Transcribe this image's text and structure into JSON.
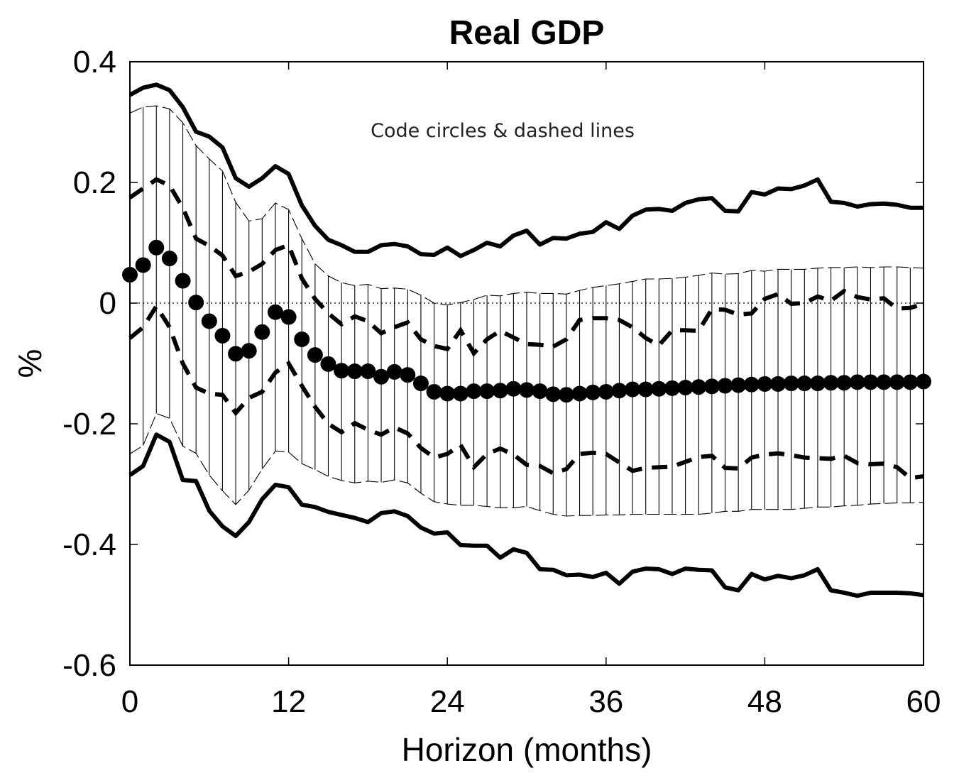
{
  "chart_data": {
    "type": "line",
    "title": "Real GDP",
    "xlabel": "Horizon (months)",
    "ylabel": "%",
    "annotation": "Code circles & dashed lines",
    "xlim": [
      0,
      60
    ],
    "ylim": [
      -0.6,
      0.4
    ],
    "xticks": [
      0,
      12,
      24,
      36,
      48,
      60
    ],
    "yticks": [
      0.4,
      0.2,
      0,
      -0.2,
      -0.4,
      -0.6
    ],
    "xtick_labels": [
      "0",
      "12",
      "24",
      "36",
      "48",
      "60"
    ],
    "ytick_labels": [
      "0.4",
      "0.2",
      "0",
      "-0.2",
      "-0.4",
      "-0.6"
    ],
    "grid": false,
    "zero_line": true,
    "x": [
      0,
      1,
      2,
      3,
      4,
      5,
      6,
      7,
      8,
      9,
      10,
      11,
      12,
      13,
      14,
      15,
      16,
      17,
      18,
      19,
      20,
      21,
      22,
      23,
      24,
      25,
      26,
      27,
      28,
      29,
      30,
      31,
      32,
      33,
      34,
      35,
      36,
      37,
      38,
      39,
      40,
      41,
      42,
      43,
      44,
      45,
      46,
      47,
      48,
      49,
      50,
      51,
      52,
      53,
      54,
      55,
      56,
      57,
      58,
      59,
      60
    ],
    "series": [
      {
        "role": "solid-outer-upper",
        "values": [
          0.345,
          0.357,
          0.362,
          0.353,
          0.325,
          0.284,
          0.276,
          0.258,
          0.207,
          0.193,
          0.207,
          0.227,
          0.214,
          0.162,
          0.128,
          0.105,
          0.096,
          0.085,
          0.085,
          0.096,
          0.098,
          0.094,
          0.081,
          0.08,
          0.092,
          0.078,
          0.088,
          0.1,
          0.094,
          0.112,
          0.12,
          0.097,
          0.108,
          0.107,
          0.115,
          0.118,
          0.134,
          0.123,
          0.145,
          0.155,
          0.156,
          0.153,
          0.166,
          0.172,
          0.174,
          0.153,
          0.152,
          0.184,
          0.18,
          0.19,
          0.189,
          0.195,
          0.205,
          0.168,
          0.166,
          0.16,
          0.164,
          0.165,
          0.163,
          0.158,
          0.158
        ]
      },
      {
        "role": "solid-outer-lower",
        "values": [
          -0.285,
          -0.27,
          -0.218,
          -0.23,
          -0.293,
          -0.295,
          -0.344,
          -0.37,
          -0.386,
          -0.363,
          -0.325,
          -0.301,
          -0.305,
          -0.334,
          -0.338,
          -0.346,
          -0.351,
          -0.356,
          -0.363,
          -0.348,
          -0.345,
          -0.353,
          -0.372,
          -0.382,
          -0.38,
          -0.401,
          -0.402,
          -0.402,
          -0.422,
          -0.408,
          -0.414,
          -0.441,
          -0.442,
          -0.451,
          -0.45,
          -0.454,
          -0.447,
          -0.465,
          -0.445,
          -0.44,
          -0.441,
          -0.449,
          -0.44,
          -0.442,
          -0.443,
          -0.471,
          -0.476,
          -0.449,
          -0.458,
          -0.452,
          -0.456,
          -0.451,
          -0.441,
          -0.476,
          -0.48,
          -0.485,
          -0.48,
          -0.48,
          -0.48,
          -0.481,
          -0.484
        ]
      },
      {
        "role": "band-upper",
        "values": [
          0.315,
          0.325,
          0.327,
          0.322,
          0.299,
          0.261,
          0.239,
          0.219,
          0.167,
          0.136,
          0.14,
          0.166,
          0.155,
          0.107,
          0.065,
          0.045,
          0.034,
          0.029,
          0.031,
          0.024,
          0.025,
          0.023,
          0.013,
          0.0,
          -0.003,
          0.001,
          0.006,
          0.013,
          0.012,
          0.016,
          0.018,
          0.016,
          0.016,
          0.015,
          0.021,
          0.026,
          0.029,
          0.032,
          0.036,
          0.04,
          0.04,
          0.041,
          0.043,
          0.046,
          0.05,
          0.048,
          0.049,
          0.054,
          0.053,
          0.056,
          0.056,
          0.056,
          0.058,
          0.059,
          0.059,
          0.06,
          0.059,
          0.06,
          0.06,
          0.059,
          0.058
        ]
      },
      {
        "role": "band-lower",
        "values": [
          -0.25,
          -0.236,
          -0.183,
          -0.191,
          -0.237,
          -0.249,
          -0.285,
          -0.311,
          -0.334,
          -0.31,
          -0.275,
          -0.245,
          -0.247,
          -0.266,
          -0.276,
          -0.287,
          -0.294,
          -0.298,
          -0.295,
          -0.297,
          -0.293,
          -0.298,
          -0.315,
          -0.329,
          -0.333,
          -0.335,
          -0.335,
          -0.337,
          -0.339,
          -0.339,
          -0.337,
          -0.344,
          -0.35,
          -0.353,
          -0.352,
          -0.352,
          -0.351,
          -0.351,
          -0.35,
          -0.35,
          -0.35,
          -0.35,
          -0.35,
          -0.35,
          -0.348,
          -0.345,
          -0.345,
          -0.342,
          -0.342,
          -0.342,
          -0.342,
          -0.34,
          -0.338,
          -0.338,
          -0.336,
          -0.335,
          -0.333,
          -0.332,
          -0.331,
          -0.331,
          -0.33
        ]
      },
      {
        "role": "dashed-upper",
        "values": [
          0.175,
          0.19,
          0.205,
          0.195,
          0.158,
          0.107,
          0.095,
          0.079,
          0.045,
          0.052,
          0.065,
          0.088,
          0.096,
          0.041,
          0.007,
          -0.017,
          -0.035,
          -0.022,
          -0.03,
          -0.05,
          -0.04,
          -0.032,
          -0.06,
          -0.071,
          -0.076,
          -0.045,
          -0.083,
          -0.06,
          -0.046,
          -0.057,
          -0.068,
          -0.069,
          -0.072,
          -0.06,
          -0.028,
          -0.025,
          -0.025,
          -0.028,
          -0.04,
          -0.058,
          -0.07,
          -0.045,
          -0.045,
          -0.046,
          -0.01,
          -0.011,
          -0.019,
          -0.017,
          0.007,
          0.015,
          -0.001,
          0.0,
          0.011,
          0.004,
          0.02,
          0.01,
          0.006,
          0.008,
          -0.009,
          -0.008,
          -0.001
        ]
      },
      {
        "role": "dashed-lower",
        "values": [
          -0.058,
          -0.04,
          -0.005,
          -0.04,
          -0.1,
          -0.14,
          -0.15,
          -0.152,
          -0.182,
          -0.157,
          -0.147,
          -0.115,
          -0.1,
          -0.137,
          -0.172,
          -0.2,
          -0.214,
          -0.199,
          -0.21,
          -0.218,
          -0.206,
          -0.216,
          -0.24,
          -0.256,
          -0.25,
          -0.235,
          -0.272,
          -0.25,
          -0.241,
          -0.251,
          -0.268,
          -0.27,
          -0.282,
          -0.275,
          -0.25,
          -0.248,
          -0.25,
          -0.264,
          -0.278,
          -0.273,
          -0.272,
          -0.271,
          -0.263,
          -0.255,
          -0.253,
          -0.273,
          -0.274,
          -0.256,
          -0.251,
          -0.249,
          -0.252,
          -0.256,
          -0.257,
          -0.258,
          -0.253,
          -0.265,
          -0.267,
          -0.266,
          -0.272,
          -0.29,
          -0.287
        ]
      },
      {
        "role": "circles-median",
        "values": [
          0.047,
          0.063,
          0.092,
          0.074,
          0.037,
          0.001,
          -0.03,
          -0.054,
          -0.084,
          -0.079,
          -0.048,
          -0.015,
          -0.023,
          -0.06,
          -0.086,
          -0.101,
          -0.112,
          -0.113,
          -0.113,
          -0.122,
          -0.114,
          -0.119,
          -0.133,
          -0.147,
          -0.15,
          -0.15,
          -0.146,
          -0.146,
          -0.145,
          -0.142,
          -0.144,
          -0.146,
          -0.151,
          -0.152,
          -0.15,
          -0.148,
          -0.147,
          -0.145,
          -0.143,
          -0.143,
          -0.142,
          -0.141,
          -0.14,
          -0.139,
          -0.138,
          -0.137,
          -0.136,
          -0.135,
          -0.134,
          -0.134,
          -0.133,
          -0.133,
          -0.133,
          -0.132,
          -0.132,
          -0.131,
          -0.131,
          -0.131,
          -0.131,
          -0.131,
          -0.13
        ]
      }
    ]
  }
}
